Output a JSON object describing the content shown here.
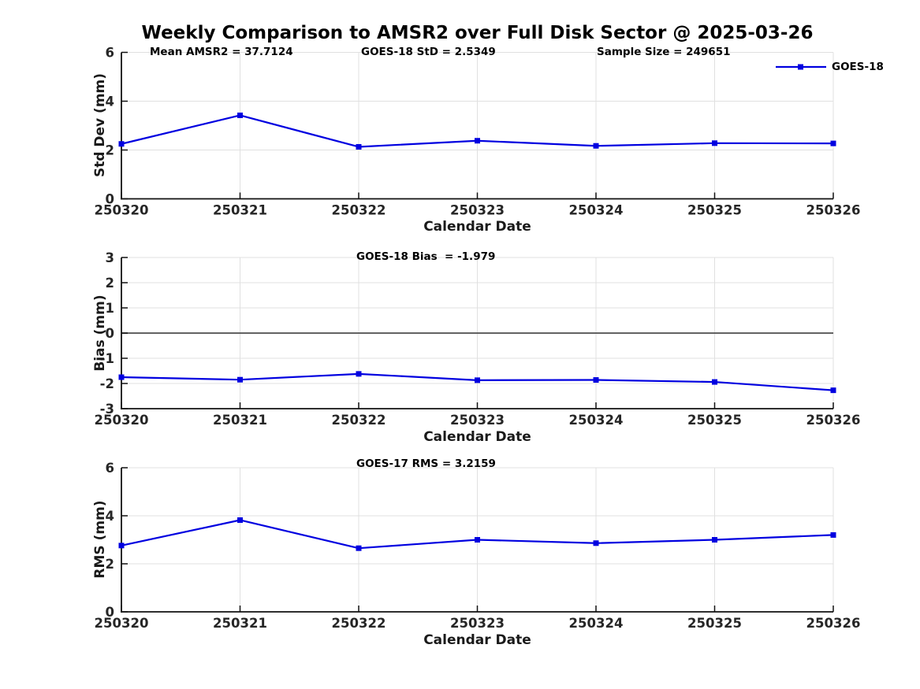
{
  "title": "Weekly Comparison to AMSR2 over Full Disk Sector @ 2025-03-26",
  "legend": {
    "label": "GOES-18",
    "series_color": "#0000e0"
  },
  "colors": {
    "line": "#0000e0",
    "grid": "#e0e0e0",
    "axis": "#111111",
    "tick_text": "#262626",
    "zero_line": "#4d4d4d",
    "background": "#ffffff"
  },
  "chart_data": [
    {
      "type": "line",
      "annotations": [
        "Mean AMSR2 = 37.7124",
        "GOES-18 StD = 2.5349",
        "Sample Size = 249651"
      ],
      "categories": [
        "250320",
        "250321",
        "250322",
        "250323",
        "250324",
        "250325",
        "250326"
      ],
      "series": [
        {
          "name": "GOES-18",
          "values": [
            2.25,
            3.42,
            2.13,
            2.38,
            2.17,
            2.28,
            2.27
          ]
        }
      ],
      "xlabel": "Calendar Date",
      "ylabel": "Std Dev (mm)",
      "ylim": [
        0,
        6
      ],
      "yticks": [
        0,
        2,
        4,
        6
      ],
      "grid": true,
      "zero_line": false,
      "legend_position": "top-right",
      "marker": "square"
    },
    {
      "type": "line",
      "annotations": [
        "GOES-18 Bias  = -1.979"
      ],
      "categories": [
        "250320",
        "250321",
        "250322",
        "250323",
        "250324",
        "250325",
        "250326"
      ],
      "series": [
        {
          "name": "GOES-18",
          "values": [
            -1.75,
            -1.85,
            -1.62,
            -1.87,
            -1.86,
            -1.94,
            -2.27
          ]
        }
      ],
      "xlabel": "Calendar Date",
      "ylabel": "Bias (mm)",
      "ylim": [
        -3,
        3
      ],
      "yticks": [
        -3,
        -2,
        -1,
        0,
        1,
        2,
        3
      ],
      "grid": true,
      "zero_line": true,
      "legend_position": "none",
      "marker": "square"
    },
    {
      "type": "line",
      "annotations": [
        "GOES-17 RMS = 3.2159"
      ],
      "categories": [
        "250320",
        "250321",
        "250322",
        "250323",
        "250324",
        "250325",
        "250326"
      ],
      "series": [
        {
          "name": "GOES-18",
          "values": [
            2.76,
            3.82,
            2.65,
            3.0,
            2.86,
            3.0,
            3.2
          ]
        }
      ],
      "xlabel": "Calendar Date",
      "ylabel": "RMS (mm)",
      "ylim": [
        0,
        6
      ],
      "yticks": [
        0,
        2,
        4,
        6
      ],
      "grid": true,
      "zero_line": false,
      "legend_position": "none",
      "marker": "square"
    }
  ]
}
